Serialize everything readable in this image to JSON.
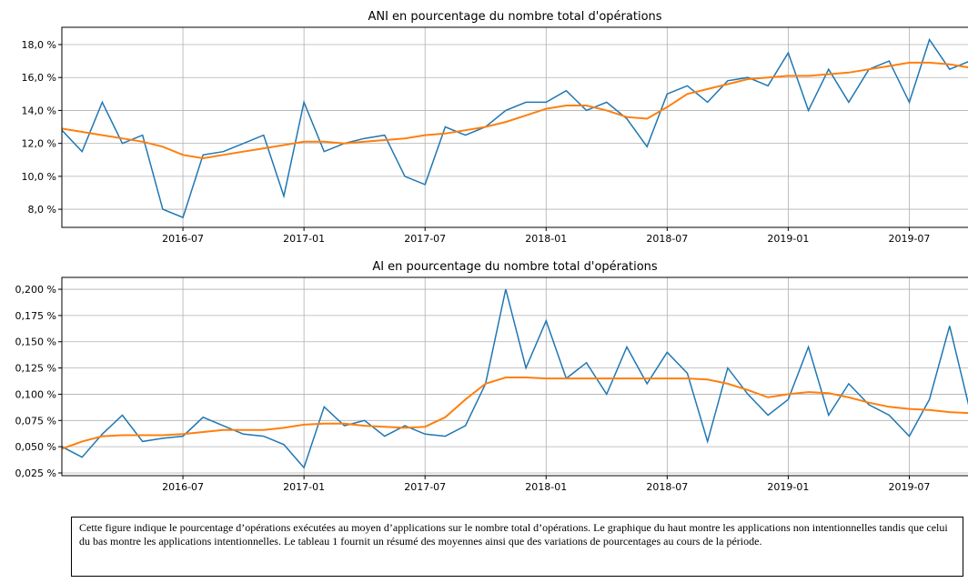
{
  "chart_data": [
    {
      "type": "line",
      "title": "ANI en pourcentage du nombre total d'opérations",
      "x": [
        "2016-01",
        "2016-02",
        "2016-03",
        "2016-04",
        "2016-05",
        "2016-06",
        "2016-07",
        "2016-08",
        "2016-09",
        "2016-10",
        "2016-11",
        "2016-12",
        "2017-01",
        "2017-02",
        "2017-03",
        "2017-04",
        "2017-05",
        "2017-06",
        "2017-07",
        "2017-08",
        "2017-09",
        "2017-10",
        "2017-11",
        "2017-12",
        "2018-01",
        "2018-02",
        "2018-03",
        "2018-04",
        "2018-05",
        "2018-06",
        "2018-07",
        "2018-08",
        "2018-09",
        "2018-10",
        "2018-11",
        "2018-12",
        "2019-01",
        "2019-02",
        "2019-03",
        "2019-04",
        "2019-05",
        "2019-06",
        "2019-07",
        "2019-08",
        "2019-09",
        "2019-10"
      ],
      "series": [
        {
          "color": "#1f77b4",
          "values": [
            12.8,
            11.5,
            14.5,
            12.0,
            12.5,
            8.0,
            7.5,
            11.3,
            11.5,
            12.0,
            12.5,
            8.8,
            14.5,
            11.5,
            12.0,
            12.3,
            12.5,
            10.0,
            9.5,
            13.0,
            12.5,
            13.0,
            14.0,
            14.5,
            14.5,
            15.2,
            14.0,
            14.5,
            13.5,
            11.8,
            15.0,
            15.5,
            14.5,
            15.8,
            16.0,
            15.5,
            17.5,
            14.0,
            16.5,
            14.5,
            16.5,
            17.0,
            14.5,
            18.3,
            16.5,
            17.0
          ]
        },
        {
          "color": "#ff7f0e",
          "values": [
            12.9,
            12.7,
            12.5,
            12.3,
            12.1,
            11.8,
            11.3,
            11.1,
            11.3,
            11.5,
            11.7,
            11.9,
            12.1,
            12.1,
            12.0,
            12.1,
            12.2,
            12.3,
            12.5,
            12.6,
            12.8,
            13.0,
            13.3,
            13.7,
            14.1,
            14.3,
            14.3,
            14.0,
            13.6,
            13.5,
            14.2,
            15.0,
            15.3,
            15.6,
            15.9,
            16.0,
            16.1,
            16.1,
            16.2,
            16.3,
            16.5,
            16.7,
            16.9,
            16.9,
            16.8,
            16.6
          ]
        }
      ],
      "xlim": [
        "2016-01",
        "2019-10"
      ],
      "xticks": [
        "2016-07",
        "2017-01",
        "2017-07",
        "2018-01",
        "2018-07",
        "2019-01",
        "2019-07"
      ],
      "ylim": [
        6.9,
        19.05
      ],
      "yticks": [
        {
          "value": 8,
          "label": "8,0 %"
        },
        {
          "value": 10,
          "label": "10,0 %"
        },
        {
          "value": 12,
          "label": "12,0 %"
        },
        {
          "value": 14,
          "label": "14,0 %"
        },
        {
          "value": 16,
          "label": "16,0 %"
        },
        {
          "value": 18,
          "label": "18,0 %"
        }
      ],
      "grid": true
    },
    {
      "type": "line",
      "title": "AI en pourcentage du nombre total d'opérations",
      "x": [
        "2016-01",
        "2016-02",
        "2016-03",
        "2016-04",
        "2016-05",
        "2016-06",
        "2016-07",
        "2016-08",
        "2016-09",
        "2016-10",
        "2016-11",
        "2016-12",
        "2017-01",
        "2017-02",
        "2017-03",
        "2017-04",
        "2017-05",
        "2017-06",
        "2017-07",
        "2017-08",
        "2017-09",
        "2017-10",
        "2017-11",
        "2017-12",
        "2018-01",
        "2018-02",
        "2018-03",
        "2018-04",
        "2018-05",
        "2018-06",
        "2018-07",
        "2018-08",
        "2018-09",
        "2018-10",
        "2018-11",
        "2018-12",
        "2019-01",
        "2019-02",
        "2019-03",
        "2019-04",
        "2019-05",
        "2019-06",
        "2019-07",
        "2019-08",
        "2019-09",
        "2019-10"
      ],
      "series": [
        {
          "color": "#1f77b4",
          "values": [
            0.05,
            0.04,
            0.062,
            0.08,
            0.055,
            0.058,
            0.06,
            0.078,
            0.07,
            0.062,
            0.06,
            0.052,
            0.03,
            0.088,
            0.07,
            0.075,
            0.06,
            0.07,
            0.062,
            0.06,
            0.07,
            0.11,
            0.2,
            0.125,
            0.17,
            0.115,
            0.13,
            0.1,
            0.145,
            0.11,
            0.14,
            0.12,
            0.055,
            0.125,
            0.1,
            0.08,
            0.095,
            0.145,
            0.08,
            0.11,
            0.09,
            0.08,
            0.06,
            0.095,
            0.165,
            0.085
          ]
        },
        {
          "color": "#ff7f0e",
          "values": [
            0.048,
            0.055,
            0.06,
            0.061,
            0.061,
            0.061,
            0.062,
            0.064,
            0.066,
            0.066,
            0.066,
            0.068,
            0.071,
            0.072,
            0.072,
            0.07,
            0.069,
            0.068,
            0.069,
            0.078,
            0.095,
            0.11,
            0.116,
            0.116,
            0.115,
            0.115,
            0.115,
            0.115,
            0.115,
            0.115,
            0.115,
            0.115,
            0.114,
            0.11,
            0.104,
            0.097,
            0.1,
            0.102,
            0.101,
            0.097,
            0.092,
            0.088,
            0.086,
            0.085,
            0.083,
            0.082
          ]
        }
      ],
      "xlim": [
        "2016-01",
        "2019-10"
      ],
      "xticks": [
        "2016-07",
        "2017-01",
        "2017-07",
        "2018-01",
        "2018-07",
        "2019-01",
        "2019-07"
      ],
      "ylim": [
        0.0224,
        0.2113
      ],
      "yticks": [
        {
          "value": 0.025,
          "label": "0,025 %"
        },
        {
          "value": 0.05,
          "label": "0,050 %"
        },
        {
          "value": 0.075,
          "label": "0,075 %"
        },
        {
          "value": 0.1,
          "label": "0,100 %"
        },
        {
          "value": 0.125,
          "label": "0,125 %"
        },
        {
          "value": 0.15,
          "label": "0,150 %"
        },
        {
          "value": 0.175,
          "label": "0,175 %"
        },
        {
          "value": 0.2,
          "label": "0,200 %"
        }
      ],
      "grid": true
    }
  ],
  "caption": "Cette figure indique le pourcentage d’opérations exécutées au moyen d’applications sur le nombre total d’opérations. Le graphique du haut montre les applications non intentionnelles tandis que celui du bas montre les applications intentionnelles. Le tableau 1 fournit un résumé des moyennes ainsi que des variations de pourcentages au cours de la période."
}
